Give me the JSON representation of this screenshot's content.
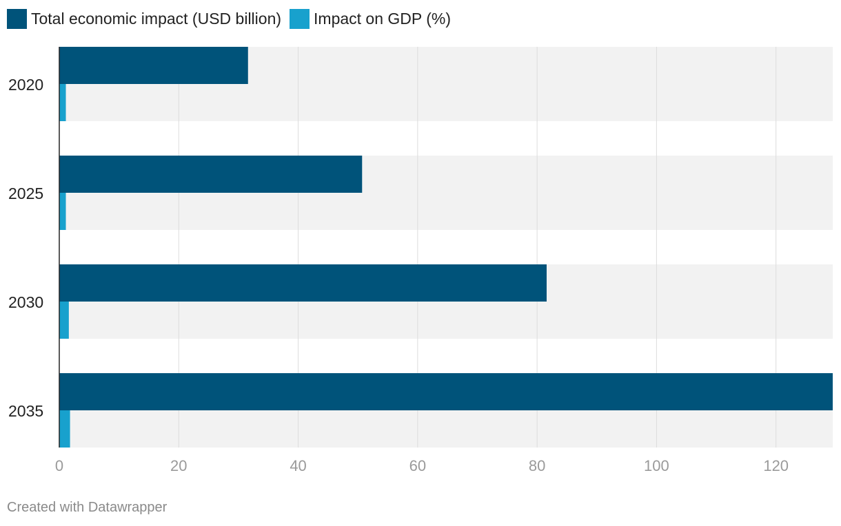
{
  "legend": [
    {
      "label": "Total economic impact (USD billion)",
      "color": "#00537a"
    },
    {
      "label": "Impact on GDP (%)",
      "color": "#18a1cd"
    }
  ],
  "chart_data": {
    "type": "bar",
    "orientation": "horizontal",
    "categories": [
      "2020",
      "2025",
      "2030",
      "2035"
    ],
    "series": [
      {
        "name": "Total economic impact (USD billion)",
        "color": "#00537a",
        "values": [
          31.6,
          50.7,
          81.6,
          129.5
        ]
      },
      {
        "name": "Impact on GDP (%)",
        "color": "#18a1cd",
        "values": [
          1.1,
          1.1,
          1.6,
          1.8
        ]
      }
    ],
    "xlim": [
      0,
      129.5
    ],
    "xticks": [
      0,
      20,
      40,
      60,
      80,
      100,
      120
    ],
    "grid": true,
    "legend_position": "top-left"
  },
  "footer": "Created with Datawrapper"
}
